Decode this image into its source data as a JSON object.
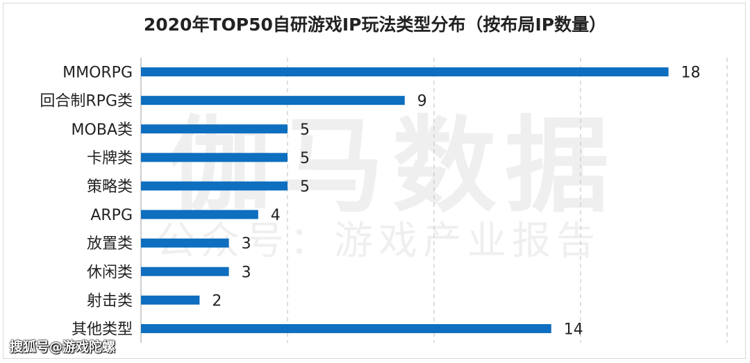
{
  "title": "2020年TOP50自研游戏IP玩法类型分布（按布局IP数量）",
  "watermark": {
    "main": "伽马数据",
    "sub": "公众号：游戏产业报告"
  },
  "footer": "搜狐号@游戏陀螺",
  "colors": {
    "bar": "#0E6EBF",
    "grid": "#C8C8C8",
    "axis": "#BFBFBF",
    "text": "#222222"
  },
  "chart_data": {
    "type": "bar",
    "orientation": "horizontal",
    "categories": [
      "MMORPG",
      "回合制RPG类",
      "MOBA类",
      "卡牌类",
      "策略类",
      "ARPG",
      "放置类",
      "休闲类",
      "射击类",
      "其他类型"
    ],
    "values": [
      18,
      9,
      5,
      5,
      5,
      4,
      3,
      3,
      2,
      14
    ],
    "title": "2020年TOP50自研游戏IP玩法类型分布（按布局IP数量）",
    "xlabel": "",
    "ylabel": "",
    "xlim": [
      0,
      20
    ],
    "gridlines": [
      5,
      10,
      15,
      20
    ],
    "grid": true,
    "data_labels": true
  }
}
